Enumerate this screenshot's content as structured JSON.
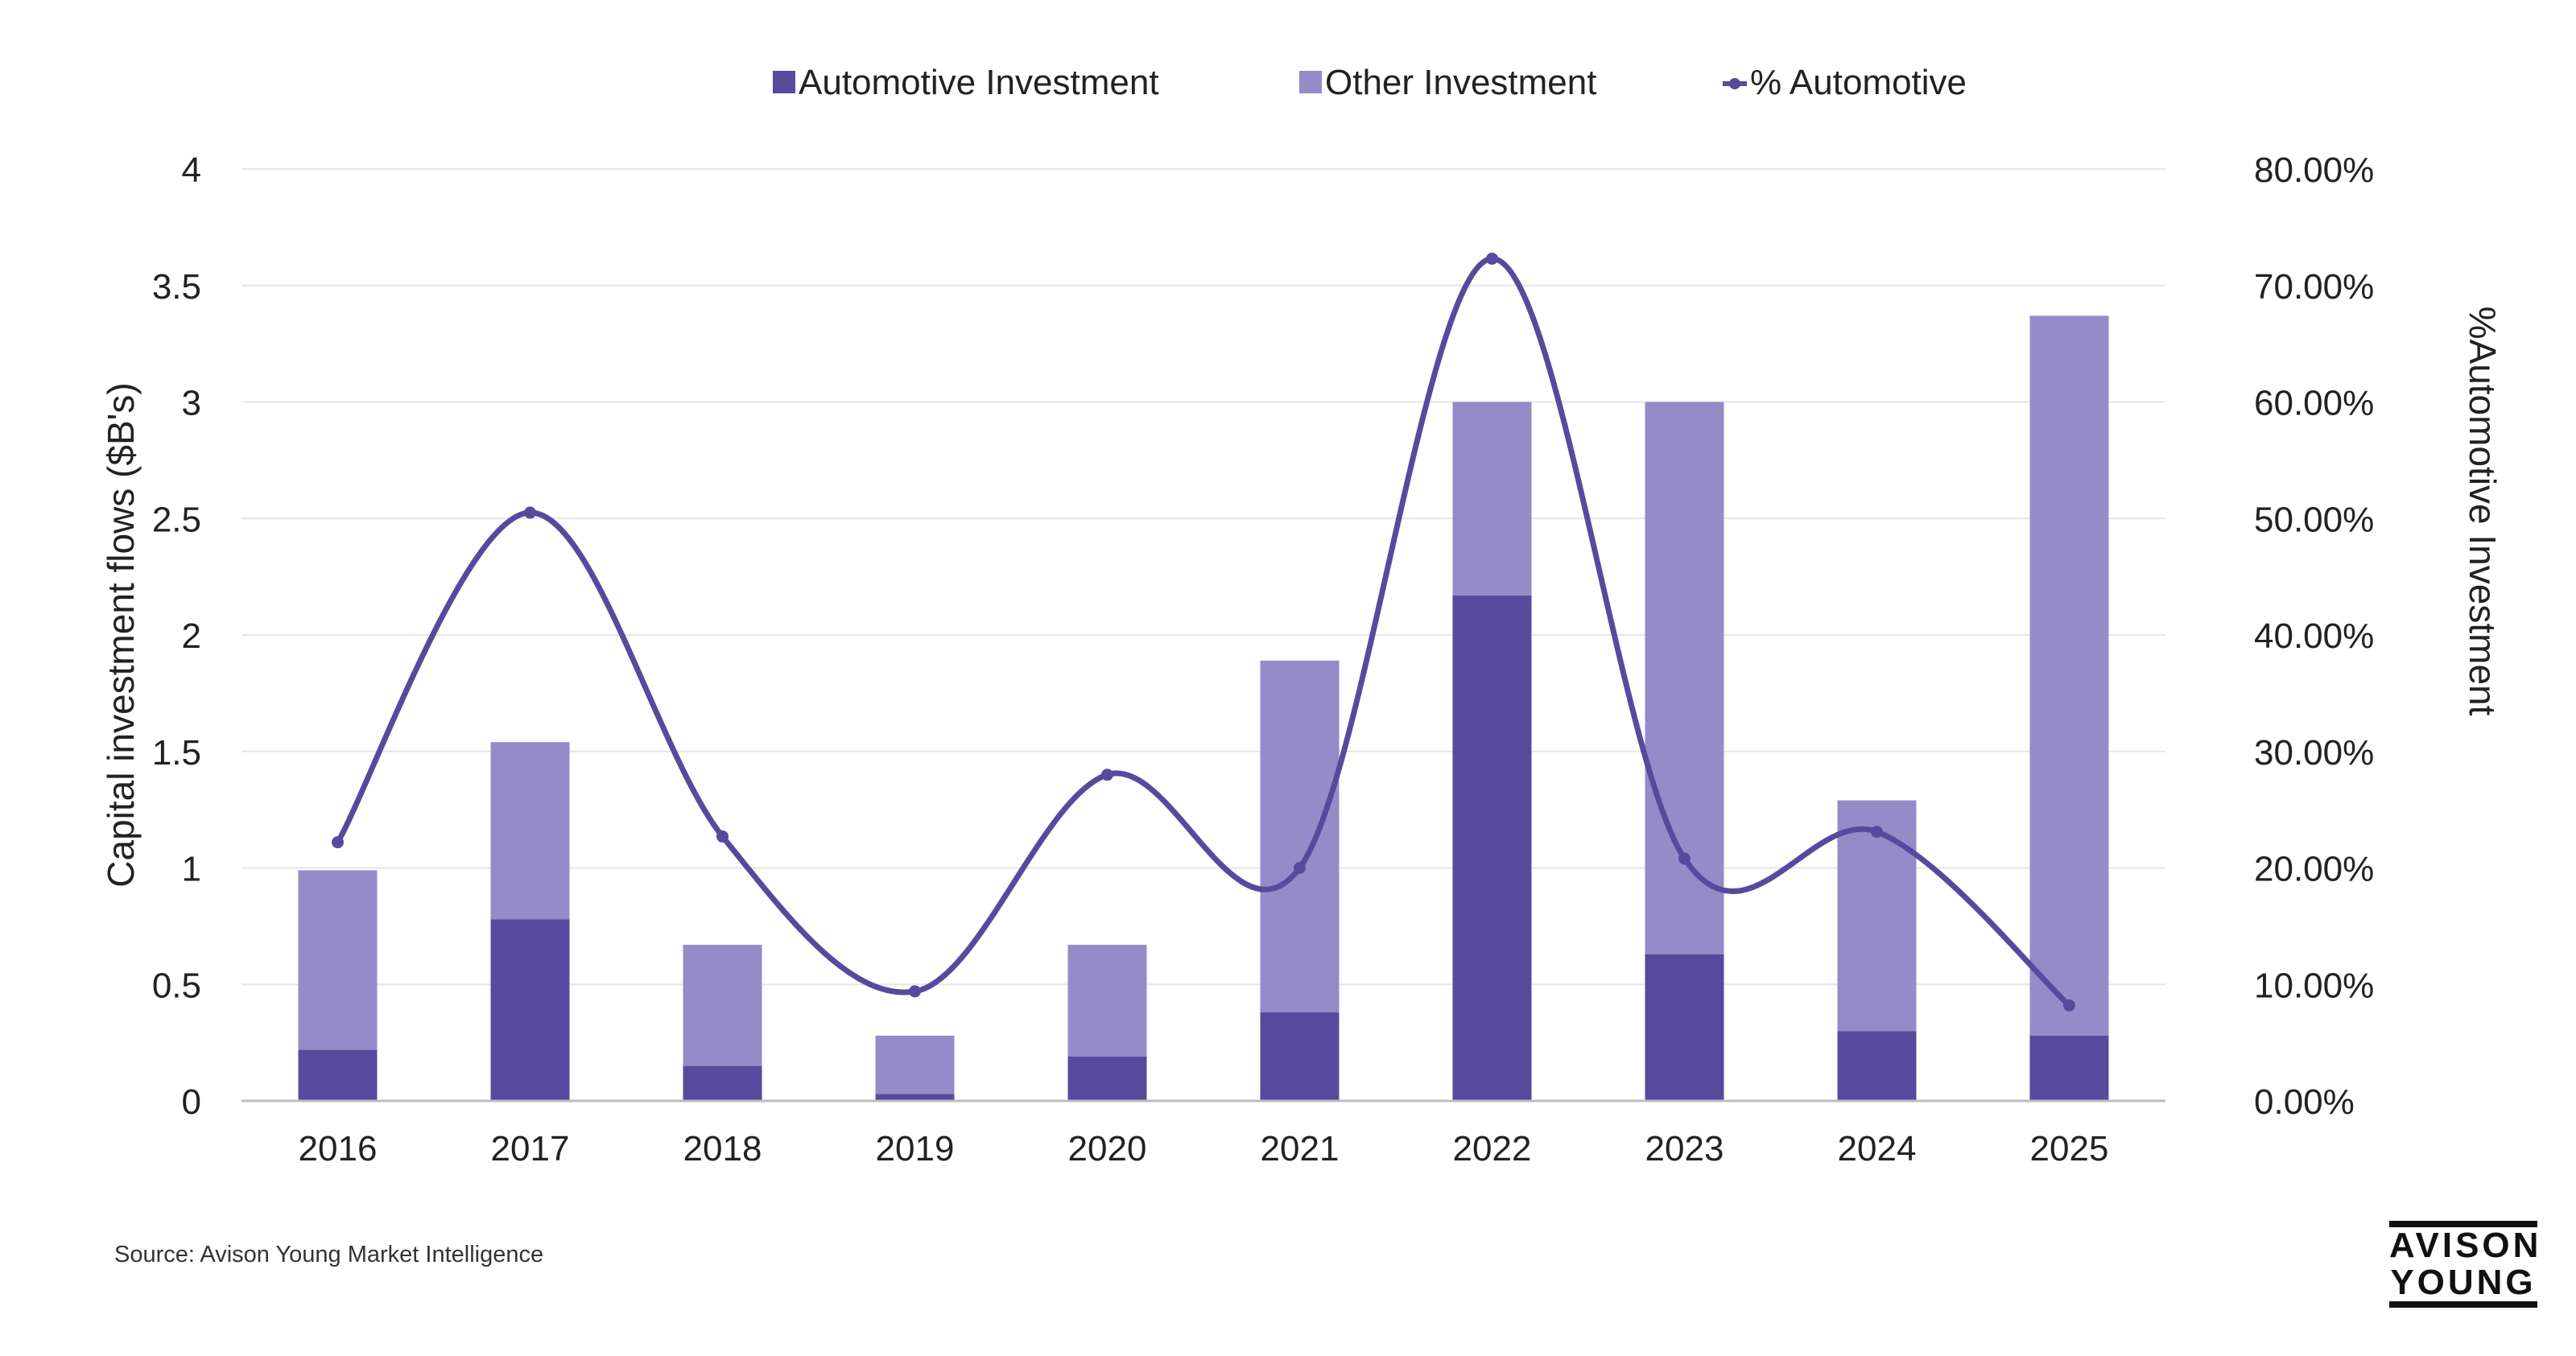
{
  "chart_data": {
    "type": "bar",
    "stacked": true,
    "categories": [
      "2016",
      "2017",
      "2018",
      "2019",
      "2020",
      "2021",
      "2022",
      "2023",
      "2024",
      "2025"
    ],
    "series": [
      {
        "name": "Automotive Investment",
        "type": "bar",
        "axis": "left",
        "color": "#574a9e",
        "values": [
          0.22,
          0.78,
          0.15,
          0.03,
          0.19,
          0.38,
          2.17,
          0.63,
          0.3,
          0.28
        ]
      },
      {
        "name": "Other Investment",
        "type": "bar",
        "axis": "left",
        "color": "#968bc9",
        "values": [
          0.77,
          0.76,
          0.52,
          0.25,
          0.48,
          1.51,
          0.83,
          2.37,
          0.99,
          3.09
        ]
      },
      {
        "name": "% Automotive",
        "type": "line",
        "axis": "right",
        "color": "#574a9e",
        "smooth": true,
        "values": [
          22.2,
          50.5,
          22.7,
          9.4,
          28.0,
          20.0,
          72.3,
          20.8,
          23.1,
          8.2
        ]
      }
    ],
    "ylabel": "Capital investment flows ($B's)",
    "y2label": "%Automotive Investment",
    "ylim": [
      0,
      4
    ],
    "y2lim": [
      0,
      80
    ],
    "yticks": [
      "0",
      "0.5",
      "1",
      "1.5",
      "2",
      "2.5",
      "3",
      "3.5",
      "4"
    ],
    "y2ticks": [
      "0.00%",
      "10.00%",
      "20.00%",
      "30.00%",
      "40.00%",
      "50.00%",
      "60.00%",
      "70.00%",
      "80.00%"
    ],
    "grid": true,
    "legend_position": "top"
  },
  "source_text": "Source: Avison Young Market Intelligence",
  "logo": {
    "line1": "AVISON",
    "line2": "YOUNG"
  }
}
